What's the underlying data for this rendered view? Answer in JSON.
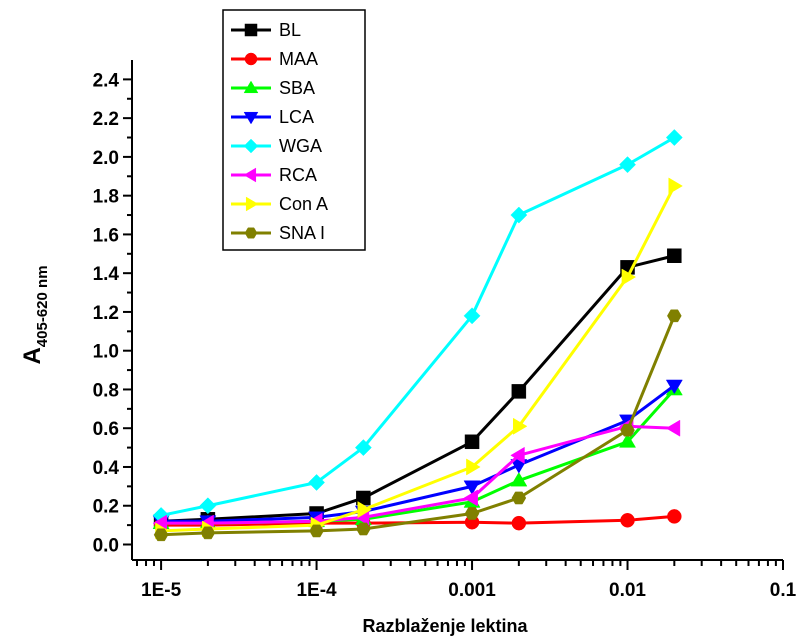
{
  "chart_data": {
    "type": "line",
    "xlabel": "Razblaženje lektina",
    "ylabel": {
      "main": "A",
      "sub": "405-620 nm"
    },
    "xscale": "log",
    "xlim": [
      6.5e-06,
      0.1
    ],
    "ylim": [
      -0.08,
      2.5
    ],
    "x_ticks": [
      1e-05,
      0.0001,
      0.001,
      0.01,
      0.1
    ],
    "x_tick_labels": [
      "1E-5",
      "1E-4",
      "0.001",
      "0.01",
      "0.1"
    ],
    "y_ticks": [
      0.0,
      0.2,
      0.4,
      0.6,
      0.8,
      1.0,
      1.2,
      1.4,
      1.6,
      1.8,
      2.0,
      2.2,
      2.4
    ],
    "y_tick_labels": [
      "0.0",
      "0.2",
      "0.4",
      "0.6",
      "0.8",
      "1.0",
      "1.2",
      "1.4",
      "1.6",
      "1.8",
      "2.0",
      "2.2",
      "2.4"
    ],
    "grid": false,
    "legend_position": "top-left",
    "x": [
      1e-05,
      2e-05,
      0.0001,
      0.0002,
      0.001,
      0.002,
      0.01,
      0.02
    ],
    "series": [
      {
        "name": "BL",
        "color": "#000000",
        "marker": "square",
        "values": [
          0.12,
          0.13,
          0.16,
          0.24,
          0.53,
          0.79,
          1.43,
          1.49
        ]
      },
      {
        "name": "MAA",
        "color": "#ff0000",
        "marker": "circle",
        "values": [
          0.1,
          0.1,
          0.11,
          0.11,
          0.115,
          0.11,
          0.125,
          0.145
        ]
      },
      {
        "name": "SBA",
        "color": "#00ff00",
        "marker": "triangle-up",
        "values": [
          0.11,
          0.11,
          0.12,
          0.13,
          0.22,
          0.33,
          0.53,
          0.8
        ]
      },
      {
        "name": "LCA",
        "color": "#0000ff",
        "marker": "triangle-down",
        "values": [
          0.12,
          0.12,
          0.14,
          0.17,
          0.3,
          0.41,
          0.64,
          0.82
        ]
      },
      {
        "name": "WGA",
        "color": "#00ffff",
        "marker": "diamond",
        "values": [
          0.15,
          0.2,
          0.32,
          0.5,
          1.18,
          1.7,
          1.96,
          2.1
        ]
      },
      {
        "name": "RCA",
        "color": "#ff00ff",
        "marker": "triangle-left",
        "values": [
          0.11,
          0.11,
          0.12,
          0.14,
          0.24,
          0.46,
          0.61,
          0.6
        ]
      },
      {
        "name": "Con A",
        "color": "#ffff00",
        "marker": "triangle-right",
        "values": [
          0.07,
          0.08,
          0.1,
          0.18,
          0.4,
          0.61,
          1.38,
          1.85
        ]
      },
      {
        "name": "SNA I",
        "color": "#808000",
        "marker": "hexagon",
        "values": [
          0.05,
          0.06,
          0.07,
          0.08,
          0.16,
          0.24,
          0.59,
          1.18
        ]
      }
    ]
  }
}
